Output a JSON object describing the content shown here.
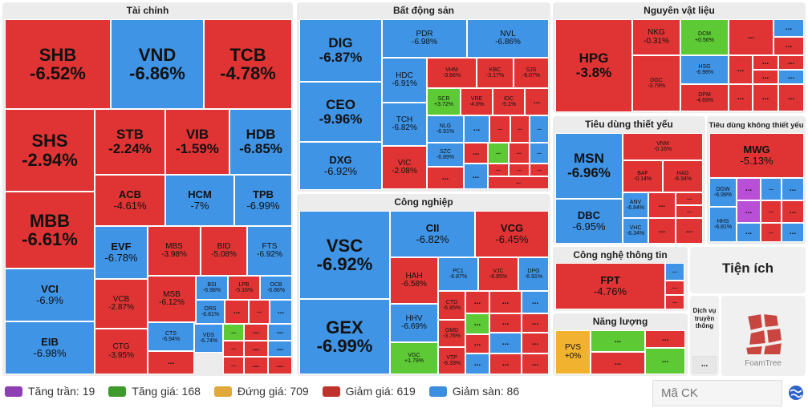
{
  "sectors": {
    "tai_chinh": "Tài chính",
    "bat_dong_san": "Bất động sản",
    "nguyen_vat_lieu": "Nguyên vật liệu",
    "tieu_dung_thiet_yeu": "Tiêu dùng thiết yếu",
    "tieu_dung_khong_thiet_yeu": "Tiêu dùng không thiết yếu",
    "cong_nghiep": "Công nghiệp",
    "cong_nghe": "Công nghệ thông tin",
    "nang_luong": "Năng lượng",
    "tien_ich": "Tiện ích",
    "dich_vu": "Dịch vụ truyền thông"
  },
  "tiles": {
    "SHB": {
      "t": "SHB",
      "p": "-6.52%"
    },
    "VND": {
      "t": "VND",
      "p": "-6.86%"
    },
    "TCB": {
      "t": "TCB",
      "p": "-4.78%"
    },
    "SHS": {
      "t": "SHS",
      "p": "-2.94%"
    },
    "STB": {
      "t": "STB",
      "p": "-2.24%"
    },
    "VIB": {
      "t": "VIB",
      "p": "-1.59%"
    },
    "HDB": {
      "t": "HDB",
      "p": "-6.85%"
    },
    "MBB": {
      "t": "MBB",
      "p": "-6.61%"
    },
    "ACB": {
      "t": "ACB",
      "p": "-4.61%"
    },
    "HCM": {
      "t": "HCM",
      "p": "-7%"
    },
    "TPB": {
      "t": "TPB",
      "p": "-6.99%"
    },
    "EVF": {
      "t": "EVF",
      "p": "-6.78%"
    },
    "MBS": {
      "t": "MBS",
      "p": "-3.98%"
    },
    "BID": {
      "t": "BID",
      "p": "-5.08%"
    },
    "FTS": {
      "t": "FTS",
      "p": "-6.92%"
    },
    "VCI": {
      "t": "VCI",
      "p": "-6.9%"
    },
    "VCB": {
      "t": "VCB",
      "p": "-2.87%"
    },
    "MSB": {
      "t": "MSB",
      "p": "-6.12%"
    },
    "BSI": {
      "t": "BSI",
      "p": "-6.98%"
    },
    "LPB": {
      "t": "LPB",
      "p": "-5.16%"
    },
    "OCB": {
      "t": "OCB",
      "p": "-6.86%"
    },
    "ORS": {
      "t": "ORS",
      "p": "-6.81%"
    },
    "EIB": {
      "t": "EIB",
      "p": "-6.98%"
    },
    "CTG": {
      "t": "CTG",
      "p": "-3.95%"
    },
    "CTS": {
      "t": "CTS",
      "p": "-6.94%"
    },
    "VDS": {
      "t": "VDS",
      "p": "-6.74%"
    },
    "DIG": {
      "t": "DIG",
      "p": "-6.87%"
    },
    "PDR": {
      "t": "PDR",
      "p": "-6.98%"
    },
    "NVL": {
      "t": "NVL",
      "p": "-6.86%"
    },
    "CEO": {
      "t": "CEO",
      "p": "-9.96%"
    },
    "HDC": {
      "t": "HDC",
      "p": "-6.91%"
    },
    "VHM": {
      "t": "VHM",
      "p": "-3.66%"
    },
    "KBC": {
      "t": "KBC",
      "p": "-3.17%"
    },
    "SJS": {
      "t": "SJS",
      "p": "-6.07%"
    },
    "SCR": {
      "t": "SCR",
      "p": "+3.72%"
    },
    "VRE": {
      "t": "VRE",
      "p": "-4.6%"
    },
    "IDC": {
      "t": "IDC",
      "p": "-5.1%"
    },
    "TCH": {
      "t": "TCH",
      "p": "-6.82%"
    },
    "NLG": {
      "t": "NLG",
      "p": "-6.91%"
    },
    "DXG": {
      "t": "DXG",
      "p": "-6.92%"
    },
    "VIC": {
      "t": "VIC",
      "p": "-2.08%"
    },
    "SZC": {
      "t": "SZC",
      "p": "-6.89%"
    },
    "HPG": {
      "t": "HPG",
      "p": "-3.8%"
    },
    "NKG": {
      "t": "NKG",
      "p": "-0.31%"
    },
    "DCM": {
      "t": "DCM",
      "p": "+0.56%"
    },
    "HSG": {
      "t": "HSG",
      "p": "-6.98%"
    },
    "DGC": {
      "t": "DGC",
      "p": "-3.79%"
    },
    "DPM": {
      "t": "DPM",
      "p": "-4.69%"
    },
    "MSN": {
      "t": "MSN",
      "p": "-6.96%"
    },
    "VNM": {
      "t": "VNM",
      "p": "-0.16%"
    },
    "BAF": {
      "t": "BAF",
      "p": "-0.14%"
    },
    "HAG": {
      "t": "HAG",
      "p": "-6.34%"
    },
    "DBC": {
      "t": "DBC",
      "p": "-6.95%"
    },
    "ANV": {
      "t": "ANV",
      "p": "-6.84%"
    },
    "VHC": {
      "t": "VHC",
      "p": "-6.34%"
    },
    "MWG": {
      "t": "MWG",
      "p": "-5.13%"
    },
    "DGW": {
      "t": "DGW",
      "p": "-6.99%"
    },
    "HHS": {
      "t": "HHS",
      "p": "-6.81%"
    },
    "VSC": {
      "t": "VSC",
      "p": "-6.92%"
    },
    "CII": {
      "t": "CII",
      "p": "-6.82%"
    },
    "VCG": {
      "t": "VCG",
      "p": "-6.45%"
    },
    "HAH": {
      "t": "HAH",
      "p": "-6.58%"
    },
    "PC1": {
      "t": "PC1",
      "p": "-6.87%"
    },
    "VJC": {
      "t": "VJC",
      "p": "-6.85%"
    },
    "DPG": {
      "t": "DPG",
      "p": "-6.91%"
    },
    "GEX": {
      "t": "GEX",
      "p": "-6.99%"
    },
    "HHV": {
      "t": "HHV",
      "p": "-6.69%"
    },
    "CTD": {
      "t": "CTD",
      "p": "-6.85%"
    },
    "GMD": {
      "t": "GMD",
      "p": "-3.76%"
    },
    "VGC": {
      "t": "VGC",
      "p": "+1.79%"
    },
    "VTP": {
      "t": "VTP",
      "p": "-6.33%"
    },
    "FPT": {
      "t": "FPT",
      "p": "-4.76%"
    },
    "PVS": {
      "t": "PVS",
      "p": "+0%"
    }
  },
  "more": "...",
  "foamtree_label": "FoamTree",
  "legend": [
    {
      "label": "Tăng trần: 19",
      "color": "#8e3fb3"
    },
    {
      "label": "Tăng giá: 168",
      "color": "#3e9a2c"
    },
    {
      "label": "Đứng giá: 709",
      "color": "#e0a93a"
    },
    {
      "label": "Giảm giá: 619",
      "color": "#c0332c"
    },
    {
      "label": "Giảm sàn: 86",
      "color": "#3b8ee0"
    }
  ],
  "search": {
    "placeholder": "Mã CK"
  }
}
